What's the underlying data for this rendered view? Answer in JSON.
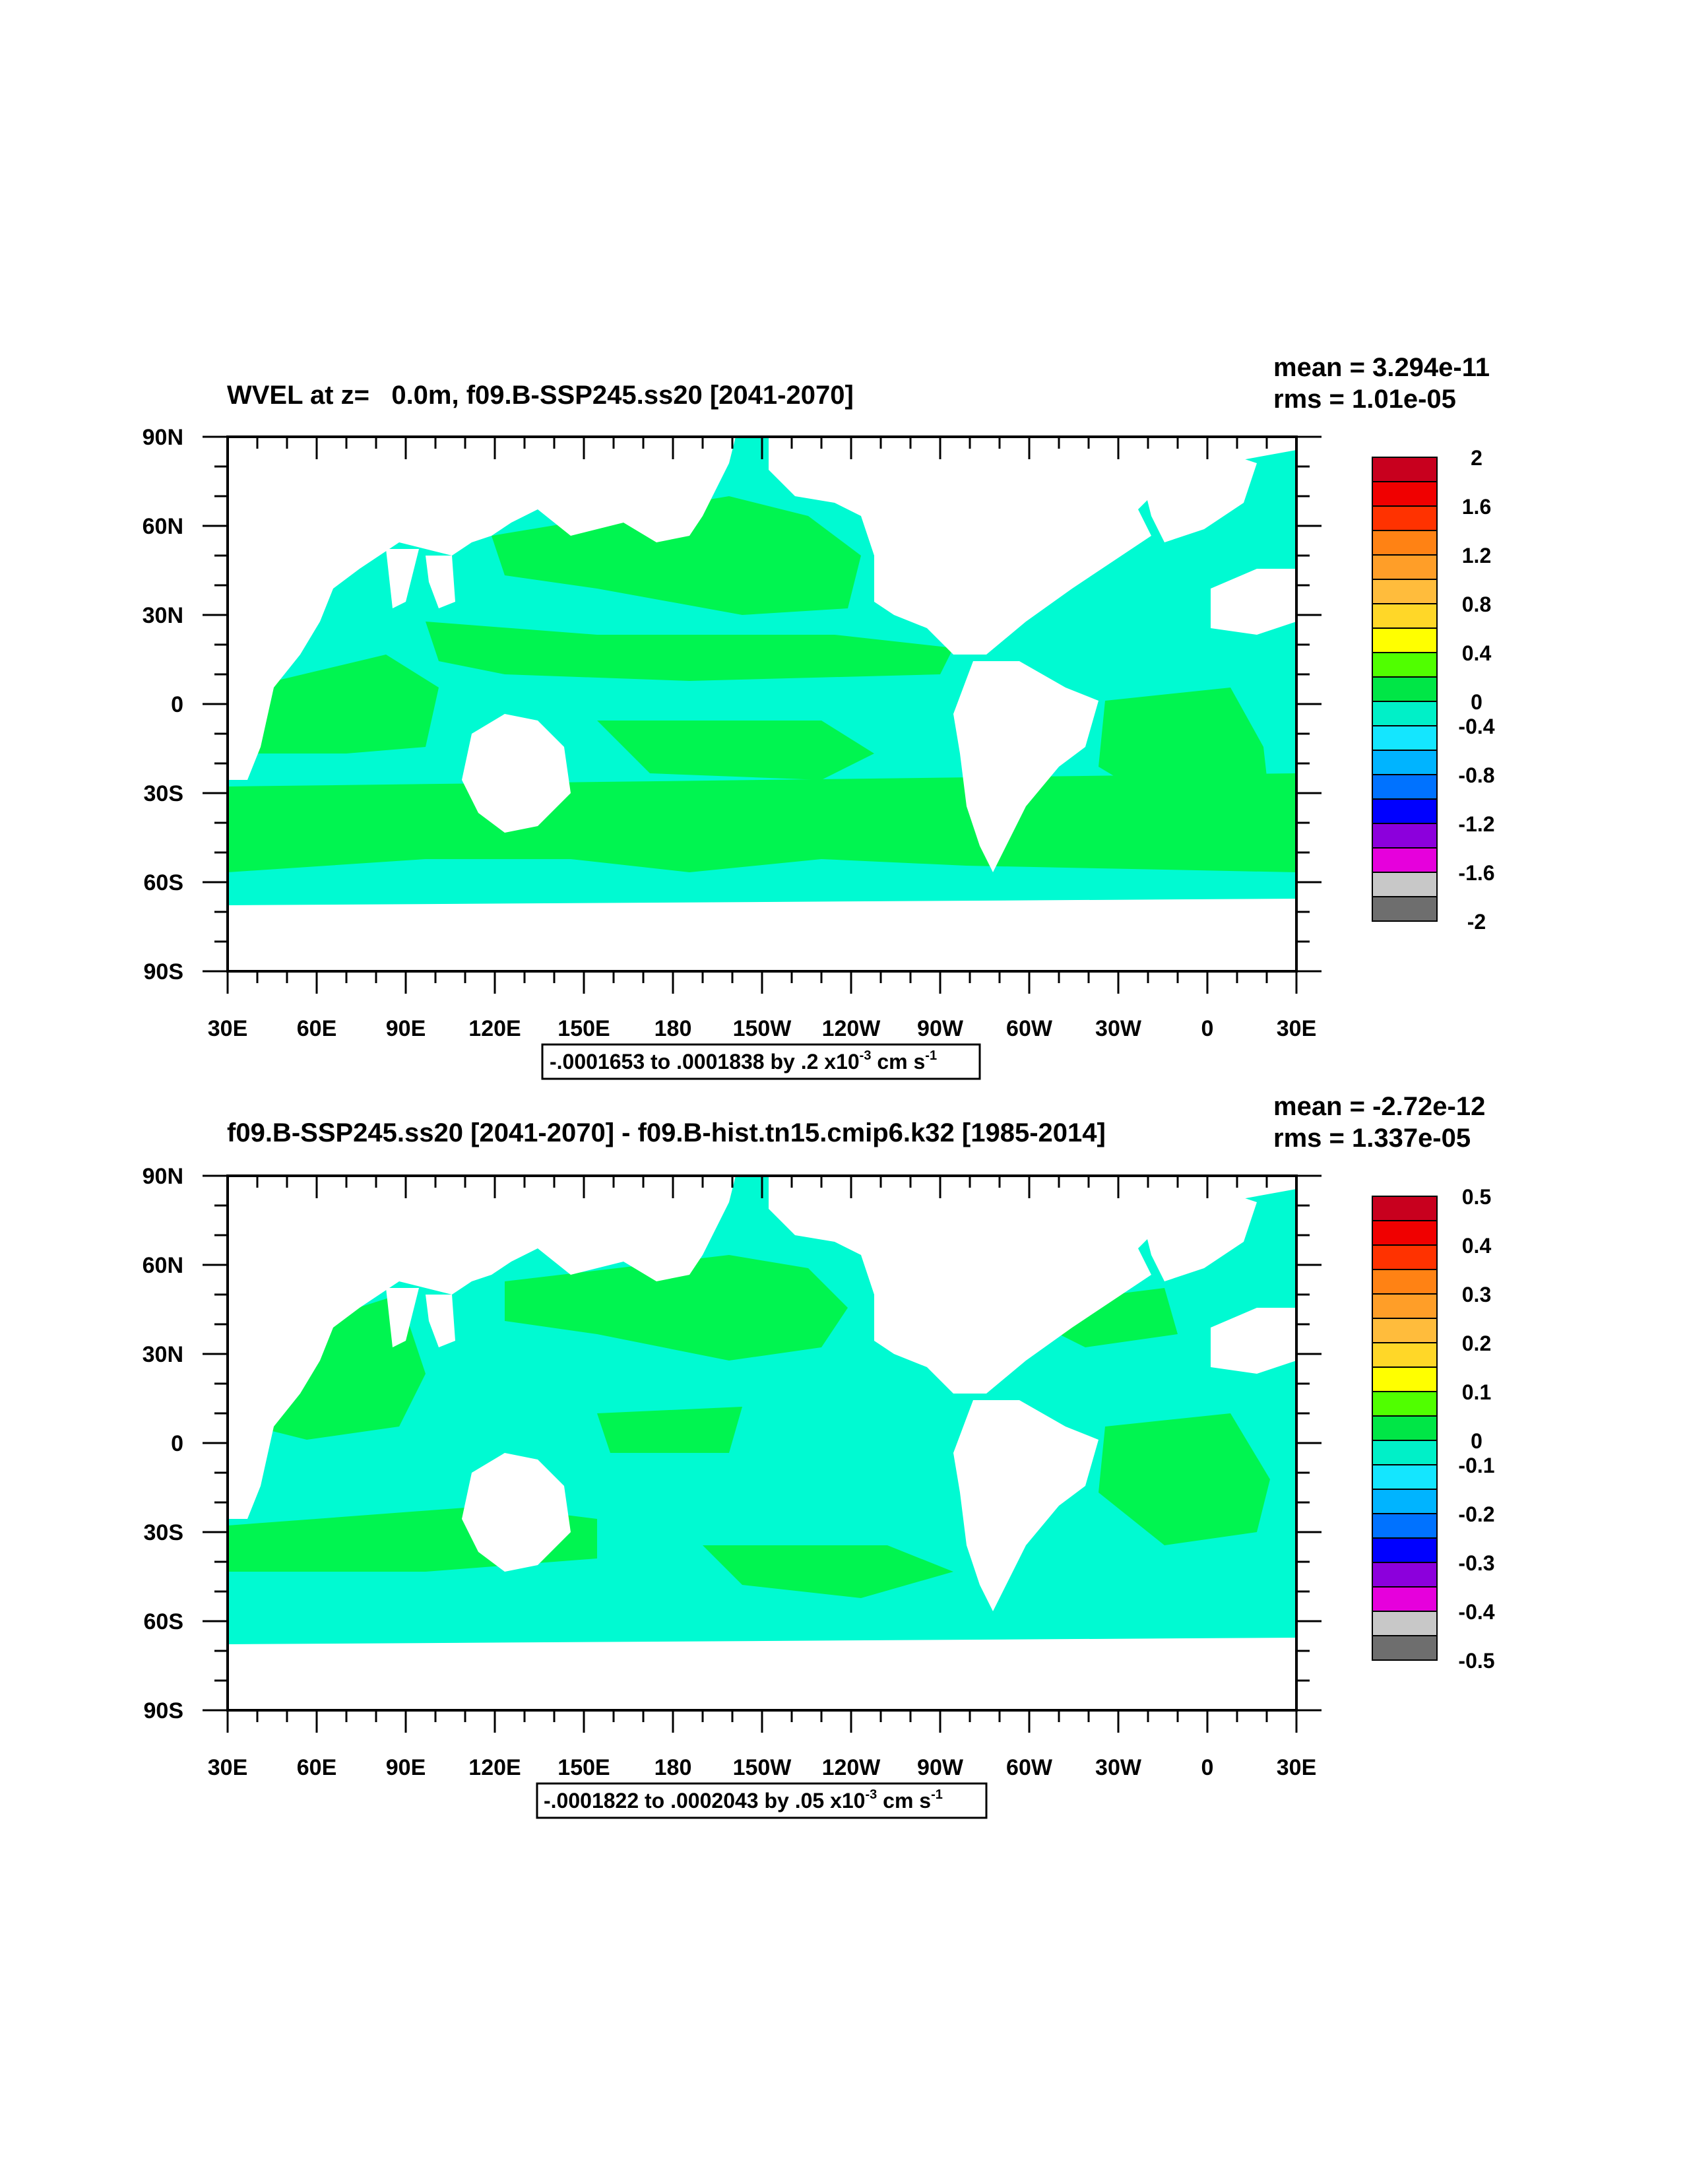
{
  "panels": [
    {
      "title": "WVEL at z=   0.0m, f09.B-SSP245.ss20 [2041-2070]",
      "stats": {
        "mean": "mean = 3.294e-11",
        "rms": "rms = 1.01e-05"
      },
      "range_label": "-.0001653 to .0001838 by .2 x10",
      "range_exp": "-3",
      "range_unit": " cm s",
      "range_unit_exp": "-1",
      "colorbar_labels": [
        "2",
        "1.6",
        "1.2",
        "0.8",
        "0.4",
        "0",
        "-0.4",
        "-0.8",
        "-1.2",
        "-1.6",
        "-2"
      ],
      "variant": "absolute"
    },
    {
      "title": "f09.B-SSP245.ss20 [2041-2070] - f09.B-hist.tn15.cmip6.k32 [1985-2014]",
      "stats": {
        "mean": "mean = -2.72e-12",
        "rms": "rms = 1.337e-05"
      },
      "range_label": "-.0001822 to .0002043 by .05 x10",
      "range_exp": "-3",
      "range_unit": " cm s",
      "range_unit_exp": "-1",
      "colorbar_labels": [
        "0.5",
        "0.4",
        "0.3",
        "0.2",
        "0.1",
        "0",
        "-0.1",
        "-0.2",
        "-0.3",
        "-0.4",
        "-0.5"
      ],
      "variant": "difference"
    }
  ],
  "axes": {
    "lon_labels": [
      "30E",
      "60E",
      "90E",
      "120E",
      "150E",
      "180",
      "150W",
      "120W",
      "90W",
      "60W",
      "30W",
      "0",
      "30E"
    ],
    "lat_labels": [
      "90N",
      "60N",
      "30N",
      "0",
      "30S",
      "60S",
      "90S"
    ]
  },
  "colors": {
    "colorbar": [
      "#c8001e",
      "#f00000",
      "#ff3200",
      "#ff8214",
      "#ff9e28",
      "#ffbc3c",
      "#ffd728",
      "#ffff00",
      "#50ff00",
      "#00e646",
      "#00f0c8",
      "#14e6ff",
      "#00b4ff",
      "#0072ff",
      "#0000ff",
      "#8c00dc",
      "#e600dc",
      "#c8c8c8",
      "#6e6e6e"
    ],
    "cyan_field": "#00fad2",
    "green_field": "#00f550",
    "land": "#ffffff"
  }
}
